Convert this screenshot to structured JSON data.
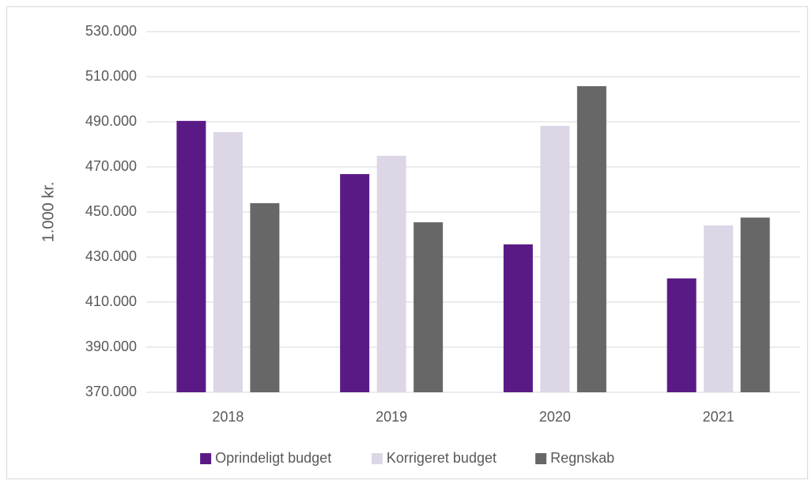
{
  "chart_data": {
    "type": "bar",
    "categories": [
      "2018",
      "2019",
      "2020",
      "2021"
    ],
    "series": [
      {
        "name": "Oprindeligt budget",
        "color": "#5a1a86",
        "values": [
          490400,
          466800,
          435600,
          420500
        ]
      },
      {
        "name": "Korrigeret budget",
        "color": "#dcd6e6",
        "values": [
          485400,
          474900,
          488200,
          444000
        ]
      },
      {
        "name": "Regnskab",
        "color": "#676767",
        "values": [
          453900,
          445400,
          505800,
          447500
        ]
      }
    ],
    "ylabel": "1.000 kr.",
    "ylim": [
      370000,
      530000
    ],
    "yticks": [
      {
        "value": 370000,
        "label": "370.000"
      },
      {
        "value": 390000,
        "label": "390.000"
      },
      {
        "value": 410000,
        "label": "410.000"
      },
      {
        "value": 430000,
        "label": "430.000"
      },
      {
        "value": 450000,
        "label": "450.000"
      },
      {
        "value": 470000,
        "label": "470.000"
      },
      {
        "value": 490000,
        "label": "490.000"
      },
      {
        "value": 510000,
        "label": "510.000"
      },
      {
        "value": 530000,
        "label": "530.000"
      }
    ],
    "grid": true,
    "legend": "bottom"
  }
}
